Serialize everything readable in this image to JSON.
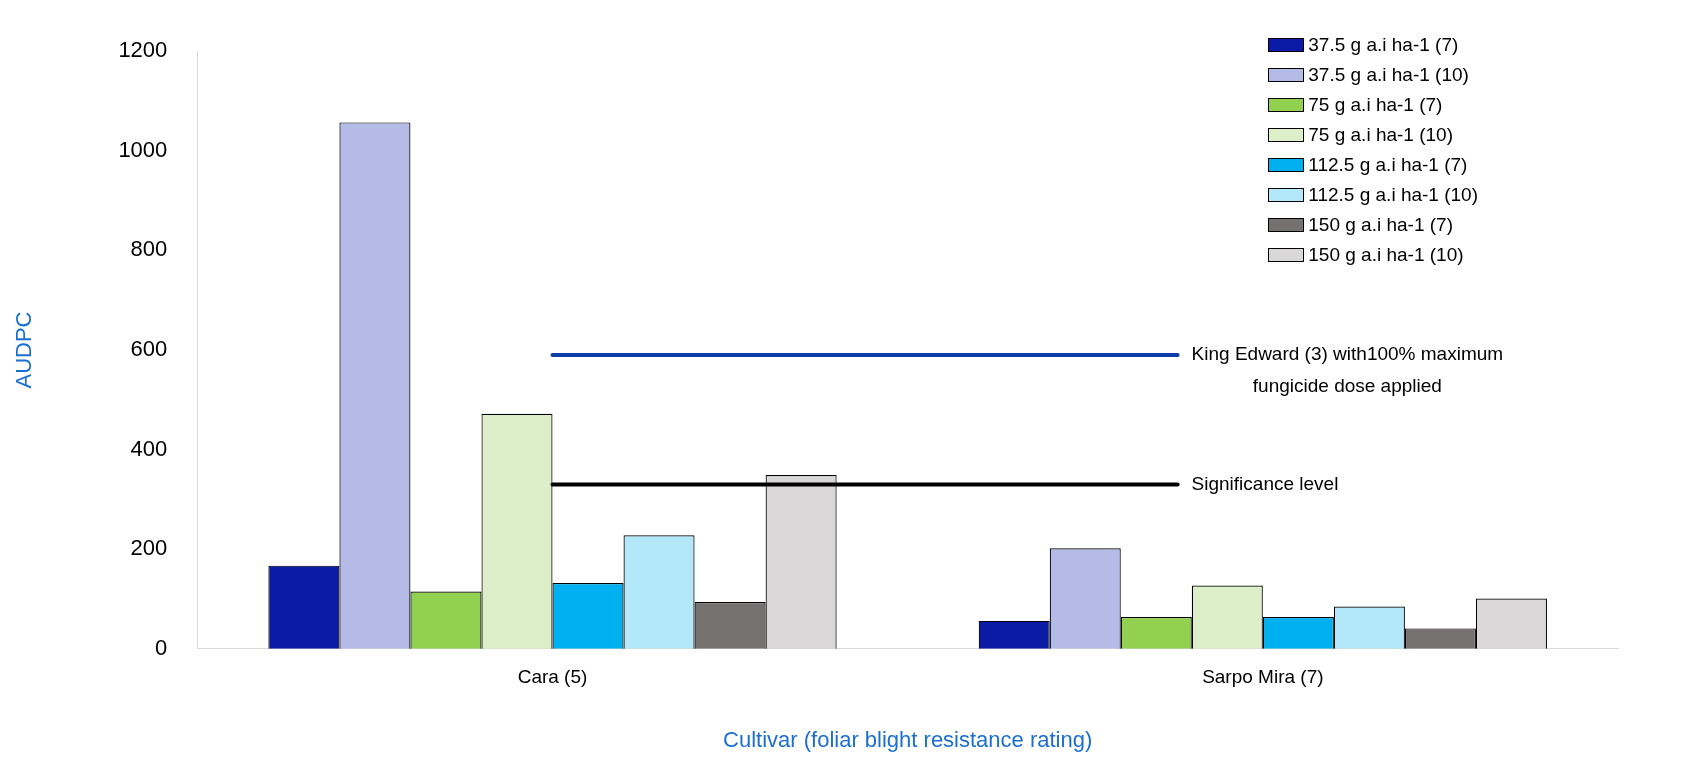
{
  "chart_data": {
    "type": "bar",
    "xlabel": "Cultivar (foliar blight resistance rating)",
    "ylabel": "AUDPC",
    "categories": [
      "Cara (5)",
      "Sarpo Mira (7)"
    ],
    "series": [
      {
        "name": "37.5 g a.i ha-1 (7)",
        "color": "#0a1ca6",
        "values": [
          167,
          56
        ]
      },
      {
        "name": "37.5 g a.i ha-1 (10)",
        "color": "#b4bbe6",
        "values": [
          1057,
          202
        ]
      },
      {
        "name": "75 g a.i ha-1 (7)",
        "color": "#92d050",
        "values": [
          115,
          64
        ]
      },
      {
        "name": "75 g a.i ha-1 (10)",
        "color": "#dcefc8",
        "values": [
          472,
          127
        ]
      },
      {
        "name": "112.5 g a.i ha-1 (7)",
        "color": "#00b0f0",
        "values": [
          132,
          64
        ]
      },
      {
        "name": "112.5 g a.i ha-1 (10)",
        "color": "#b3e7fa",
        "values": [
          228,
          85
        ]
      },
      {
        "name": "150 g a.i ha-1 (7)",
        "color": "#767171",
        "values": [
          94,
          41
        ]
      },
      {
        "name": "150 g a.i ha-1 (10)",
        "color": "#d9d7d7",
        "values": [
          349,
          101
        ]
      }
    ],
    "ylim": [
      0,
      1200
    ],
    "yticks": [
      0,
      200,
      400,
      600,
      800,
      1000,
      1200
    ],
    "grid": false,
    "legend": "top right",
    "ref_lines": [
      {
        "axis": "y",
        "value": 590,
        "label": "King Edward (3) with100% maximum fungicide dose applied",
        "color": "#0d3ea8"
      },
      {
        "axis": "y",
        "value": 330,
        "label": "Significance level",
        "color": "#000000"
      }
    ]
  }
}
